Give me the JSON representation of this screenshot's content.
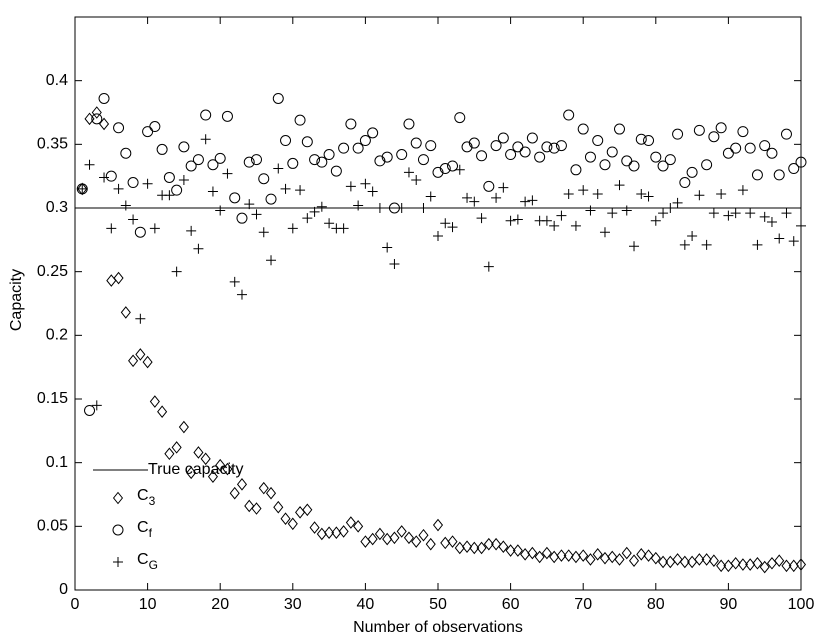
{
  "chart_data": {
    "type": "scatter",
    "xlabel": "Number of observations",
    "ylabel": "Capacity",
    "xlim": [
      0,
      100
    ],
    "ylim": [
      0,
      0.45
    ],
    "xticks": [
      0,
      10,
      20,
      30,
      40,
      50,
      60,
      70,
      80,
      90,
      100
    ],
    "yticks": [
      0,
      0.05,
      0.1,
      0.15,
      0.2,
      0.25,
      0.3,
      0.35,
      0.4
    ],
    "legend": "left",
    "reference_line": {
      "name": "True capacity",
      "value": 0.3,
      "color": "#000000"
    },
    "x": [
      1,
      2,
      3,
      4,
      5,
      6,
      7,
      8,
      9,
      10,
      11,
      12,
      13,
      14,
      15,
      16,
      17,
      18,
      19,
      20,
      21,
      22,
      23,
      24,
      25,
      26,
      27,
      28,
      29,
      30,
      31,
      32,
      33,
      34,
      35,
      36,
      37,
      38,
      39,
      40,
      41,
      42,
      43,
      44,
      45,
      46,
      47,
      48,
      49,
      50,
      51,
      52,
      53,
      54,
      55,
      56,
      57,
      58,
      59,
      60,
      61,
      62,
      63,
      64,
      65,
      66,
      67,
      68,
      69,
      70,
      71,
      72,
      73,
      74,
      75,
      76,
      77,
      78,
      79,
      80,
      81,
      82,
      83,
      84,
      85,
      86,
      87,
      88,
      89,
      90,
      91,
      92,
      93,
      94,
      95,
      96,
      97,
      98,
      99,
      100
    ],
    "series": [
      {
        "name": "C3",
        "marker": "diamond",
        "color": "#000000",
        "values": [
          0.315,
          0.37,
          0.375,
          0.366,
          0.243,
          0.245,
          0.218,
          0.18,
          0.185,
          0.179,
          0.148,
          0.14,
          0.107,
          0.112,
          0.128,
          0.092,
          0.108,
          0.103,
          0.089,
          0.098,
          0.095,
          0.076,
          0.083,
          0.066,
          0.064,
          0.08,
          0.076,
          0.065,
          0.056,
          0.052,
          0.061,
          0.063,
          0.049,
          0.044,
          0.045,
          0.045,
          0.046,
          0.053,
          0.05,
          0.038,
          0.04,
          0.044,
          0.04,
          0.041,
          0.046,
          0.041,
          0.038,
          0.043,
          0.036,
          0.051,
          0.037,
          0.038,
          0.033,
          0.034,
          0.033,
          0.033,
          0.036,
          0.036,
          0.034,
          0.031,
          0.031,
          0.028,
          0.029,
          0.026,
          0.029,
          0.026,
          0.027,
          0.027,
          0.026,
          0.027,
          0.024,
          0.028,
          0.025,
          0.026,
          0.024,
          0.029,
          0.023,
          0.028,
          0.027,
          0.025,
          0.022,
          0.022,
          0.024,
          0.022,
          0.022,
          0.024,
          0.024,
          0.023,
          0.019,
          0.019,
          0.021,
          0.02,
          0.02,
          0.021,
          0.018,
          0.021,
          0.023,
          0.019,
          0.019,
          0.02
        ]
      },
      {
        "name": "Cf",
        "marker": "circle",
        "color": "#000000",
        "values": [
          0.315,
          0.141,
          0.37,
          0.386,
          0.325,
          0.363,
          0.343,
          0.32,
          0.281,
          0.36,
          0.364,
          0.346,
          0.324,
          0.314,
          0.348,
          0.333,
          0.338,
          0.373,
          0.334,
          0.339,
          0.372,
          0.308,
          0.292,
          0.336,
          0.338,
          0.323,
          0.307,
          0.386,
          0.353,
          0.335,
          0.369,
          0.352,
          0.338,
          0.336,
          0.342,
          0.329,
          0.347,
          0.366,
          0.347,
          0.353,
          0.359,
          0.337,
          0.34,
          0.3,
          0.342,
          0.366,
          0.351,
          0.338,
          0.349,
          0.328,
          0.331,
          0.333,
          0.371,
          0.348,
          0.351,
          0.341,
          0.317,
          0.349,
          0.355,
          0.342,
          0.348,
          0.344,
          0.355,
          0.34,
          0.348,
          0.347,
          0.349,
          0.373,
          0.33,
          0.362,
          0.34,
          0.353,
          0.334,
          0.344,
          0.362,
          0.337,
          0.333,
          0.354,
          0.353,
          0.34,
          0.333,
          0.338,
          0.358,
          0.32,
          0.328,
          0.361,
          0.334,
          0.356,
          0.363,
          0.343,
          0.347,
          0.36,
          0.347,
          0.326,
          0.349,
          0.343,
          0.326,
          0.358,
          0.331,
          0.336
        ]
      },
      {
        "name": "CG",
        "marker": "plus",
        "color": "#000000",
        "values": [
          0.315,
          0.334,
          0.145,
          0.324,
          0.284,
          0.315,
          0.302,
          0.291,
          0.213,
          0.319,
          0.284,
          0.31,
          0.31,
          0.25,
          0.322,
          0.282,
          0.268,
          0.354,
          0.313,
          0.298,
          0.327,
          0.242,
          0.232,
          0.303,
          0.295,
          0.281,
          0.259,
          0.331,
          0.315,
          0.284,
          0.314,
          0.292,
          0.297,
          0.301,
          0.288,
          0.284,
          0.284,
          0.317,
          0.302,
          0.319,
          0.313,
          0.3,
          0.269,
          0.256,
          0.3,
          0.328,
          0.322,
          0.3,
          0.309,
          0.278,
          0.288,
          0.285,
          0.33,
          0.308,
          0.305,
          0.292,
          0.254,
          0.308,
          0.316,
          0.29,
          0.291,
          0.305,
          0.306,
          0.29,
          0.29,
          0.286,
          0.294,
          0.311,
          0.286,
          0.314,
          0.298,
          0.311,
          0.281,
          0.296,
          0.318,
          0.298,
          0.27,
          0.311,
          0.309,
          0.29,
          0.296,
          0.3,
          0.304,
          0.271,
          0.278,
          0.31,
          0.271,
          0.296,
          0.311,
          0.294,
          0.296,
          0.314,
          0.296,
          0.271,
          0.293,
          0.289,
          0.276,
          0.296,
          0.274,
          0.286
        ]
      }
    ]
  }
}
